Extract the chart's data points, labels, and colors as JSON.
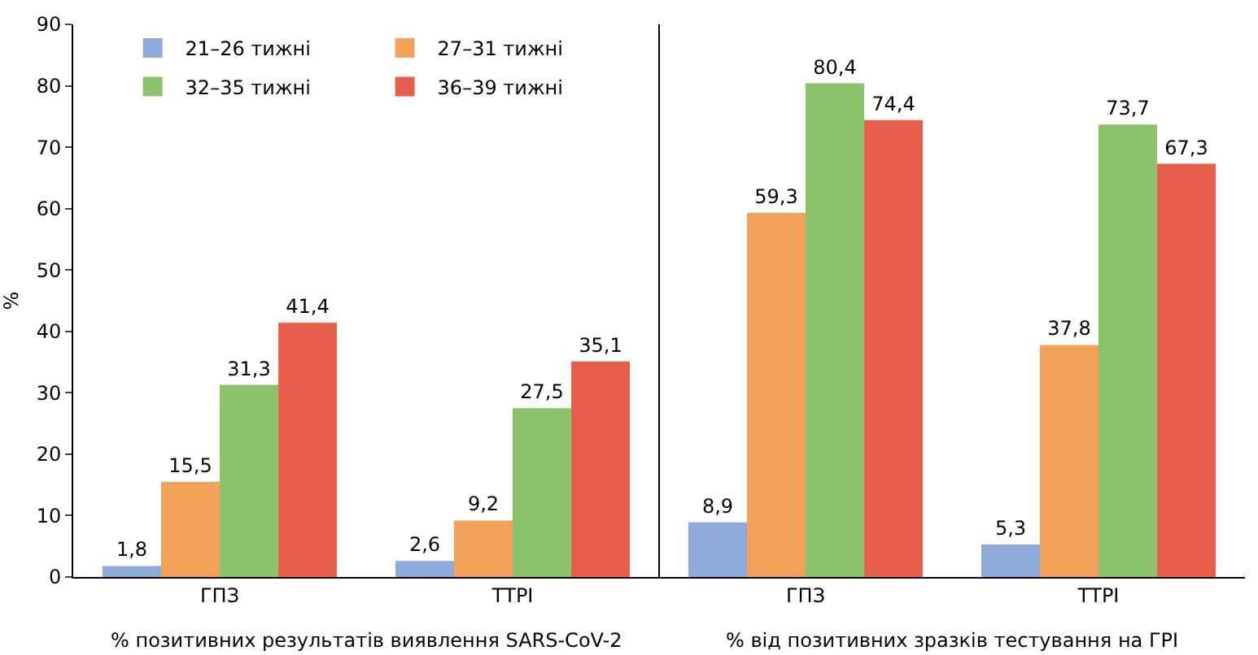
{
  "chart_data": {
    "type": "bar",
    "categories": [
      "ГПЗ",
      "ТТРІ",
      "ГПЗ",
      "ТТРІ"
    ],
    "ylabel": "%",
    "ylim": [
      0,
      90
    ],
    "yticks": [
      0,
      10,
      20,
      30,
      40,
      50,
      60,
      70,
      80,
      90
    ],
    "series": [
      {
        "name": "21–26 тижні",
        "color": "#8eaadb",
        "values": [
          1.8,
          2.6,
          8.9,
          5.3
        ],
        "value_labels": [
          "1,8",
          "2,6",
          "8,9",
          "5,3"
        ]
      },
      {
        "name": "27–31 тижні",
        "color": "#f4a259",
        "values": [
          15.5,
          9.2,
          59.3,
          37.8
        ],
        "value_labels": [
          "15,5",
          "9,2",
          "59,3",
          "37,8"
        ]
      },
      {
        "name": "32–35 тижні",
        "color": "#8cc26a",
        "values": [
          31.3,
          27.5,
          80.4,
          73.7
        ],
        "value_labels": [
          "31,3",
          "27,5",
          "80,4",
          "73,7"
        ]
      },
      {
        "name": "36–39 тижні",
        "color": "#e85e4c",
        "values": [
          41.4,
          35.1,
          74.4,
          67.3
        ],
        "value_labels": [
          "41,4",
          "35,1",
          "74,4",
          "67,3"
        ]
      }
    ],
    "annotations": [
      "% позитивних результатів виявлення SARS-CoV-2",
      "% від позитивних зразків тестування на ГРІ"
    ],
    "legend": "top left",
    "grid": false
  }
}
